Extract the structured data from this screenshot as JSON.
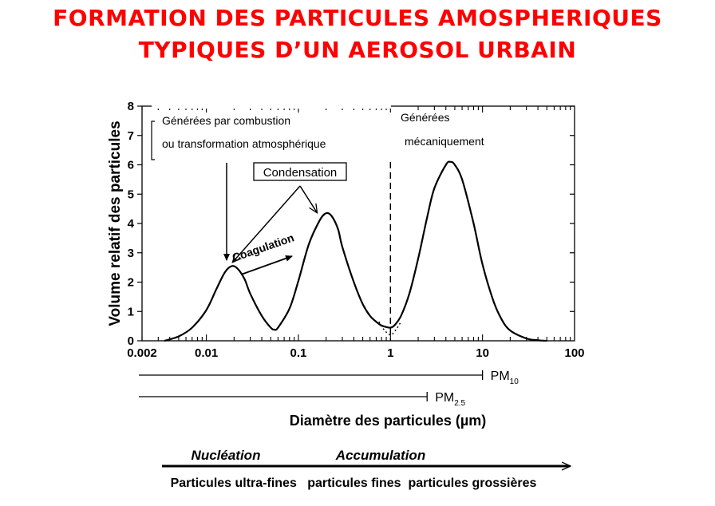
{
  "title_line1": "FORMATION DES PARTICULES AMOSPHERIQUES",
  "title_line2": "TYPIQUES D’UN AEROSOL URBAIN",
  "chart_data": {
    "type": "line",
    "xscale": "log",
    "xlabel": "Diamètre des particules (µm)",
    "ylabel": "Volume relatif des particules",
    "xlim": [
      0.002,
      100
    ],
    "ylim": [
      0,
      8
    ],
    "x_ticks": [
      {
        "value": 0.002,
        "label": "0.002"
      },
      {
        "value": 0.01,
        "label": "0.01"
      },
      {
        "value": 0.1,
        "label": "0.1"
      },
      {
        "value": 1,
        "label": "1"
      },
      {
        "value": 10,
        "label": "10"
      },
      {
        "value": 100,
        "label": "100"
      }
    ],
    "y_ticks": [
      0,
      1,
      2,
      3,
      4,
      5,
      6,
      7,
      8
    ],
    "series": [
      {
        "x": [
          0.0035,
          0.005,
          0.007,
          0.01,
          0.013,
          0.016,
          0.019,
          0.022,
          0.026,
          0.03,
          0.04,
          0.05,
          0.055,
          0.06,
          0.08,
          0.1,
          0.13,
          0.17,
          0.2,
          0.23,
          0.27,
          0.3,
          0.4,
          0.5,
          0.6,
          0.7,
          0.8,
          0.9,
          1.0,
          1.1,
          1.3,
          1.6,
          2,
          2.5,
          3,
          4,
          4.5,
          5,
          6,
          8,
          10,
          13,
          16,
          20,
          30,
          40,
          50
        ],
        "values": [
          0,
          0.15,
          0.45,
          1.05,
          1.8,
          2.35,
          2.55,
          2.45,
          2.1,
          1.6,
          0.85,
          0.45,
          0.38,
          0.45,
          1.1,
          2.05,
          3.3,
          4.1,
          4.35,
          4.25,
          3.8,
          3.2,
          2.0,
          1.25,
          0.85,
          0.65,
          0.52,
          0.47,
          0.45,
          0.52,
          0.85,
          1.6,
          2.8,
          4.2,
          5.2,
          6.0,
          6.1,
          6.0,
          5.5,
          4.0,
          2.6,
          1.4,
          0.75,
          0.35,
          0.08,
          0.02,
          0
        ]
      }
    ],
    "dotted_segment": {
      "x": [
        0.75,
        0.85,
        1.0,
        1.15,
        1.3
      ],
      "values": [
        0.65,
        0.38,
        0.2,
        0.38,
        0.65
      ]
    },
    "divider_x": 1,
    "annotations": {
      "combustion_line1": "Générées par combustion",
      "combustion_line2": "ou transformation atmosphérique",
      "mechanical_line1": "Générées",
      "mechanical_line2": "mécaniquement",
      "condensation": "Condensation",
      "coagulation": "Coagulation"
    },
    "ranges": [
      {
        "label_main": "PM",
        "label_sub": "10",
        "x_start": 0.002,
        "x_end": 10
      },
      {
        "label_main": "PM",
        "label_sub": "2.5",
        "x_start": 0.002,
        "x_end": 2.5
      }
    ],
    "modes": {
      "nucleation": "Nucléation",
      "accumulation": "Accumulation",
      "categories": "Particules ultra-fines   particules fines  particules grossières"
    }
  }
}
